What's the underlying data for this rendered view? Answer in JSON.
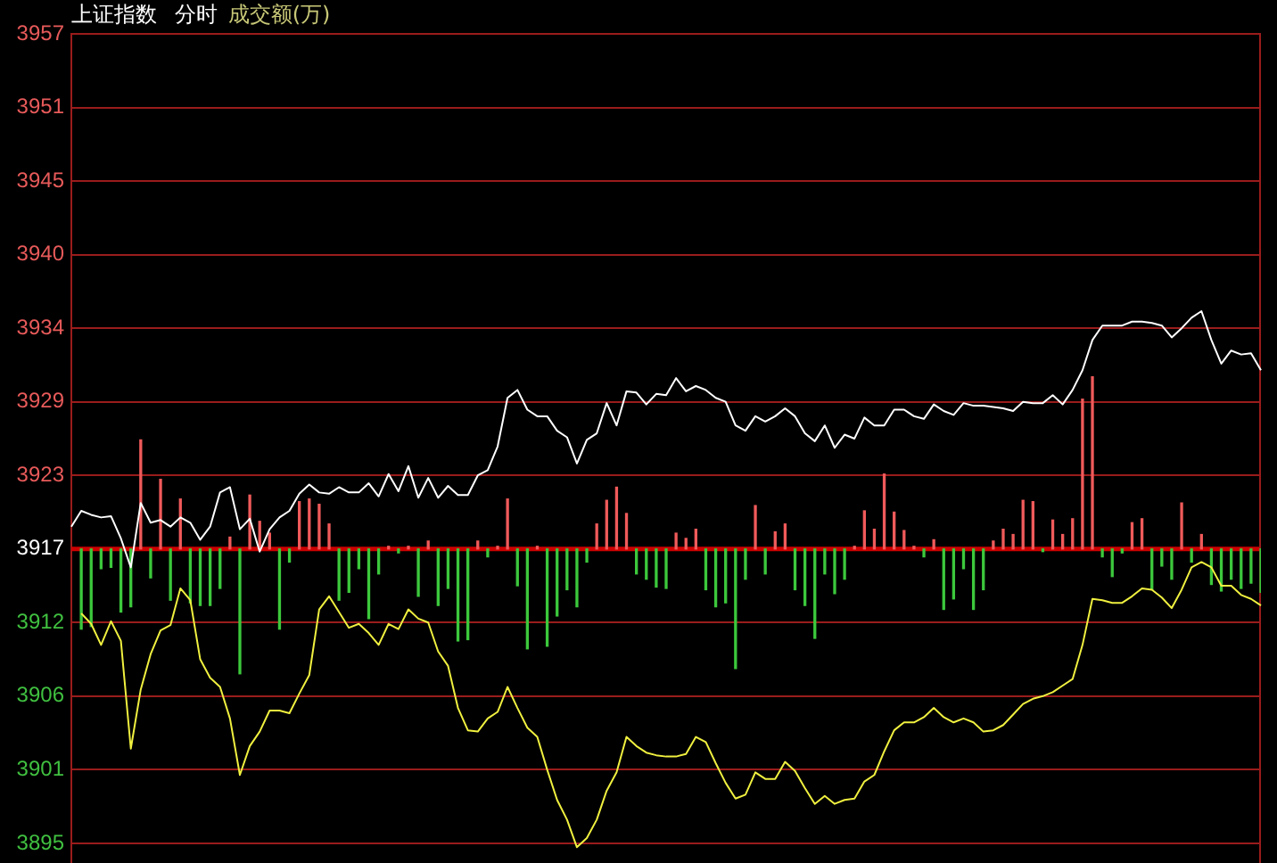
{
  "chart_data": {
    "type": "line",
    "title": "上证指数 分时",
    "subtitle": "成交额(万)",
    "categories": [
      null,
      null,
      null,
      null,
      null,
      null,
      null,
      null,
      null,
      null,
      null,
      null,
      null,
      null,
      null,
      null,
      null,
      null,
      null,
      null,
      null,
      null,
      null,
      null,
      null,
      null,
      null,
      null,
      null,
      null,
      null,
      null,
      null,
      null,
      null,
      null,
      null,
      null,
      null,
      null,
      null,
      null,
      null,
      null,
      null,
      null,
      null,
      null,
      null,
      null,
      null,
      null,
      null,
      null,
      null,
      null,
      null,
      null,
      null,
      null,
      null,
      null,
      null,
      null,
      null,
      null,
      null,
      null,
      null,
      null,
      null,
      null,
      null,
      null,
      null,
      null,
      null,
      null,
      null,
      null,
      null,
      null,
      null,
      null,
      null,
      null,
      null,
      null,
      null,
      null,
      null,
      null,
      null,
      null,
      null,
      null,
      null,
      null,
      null,
      null,
      null,
      null,
      null,
      null,
      null,
      null,
      null,
      null,
      null,
      null,
      null,
      null,
      null,
      null,
      null,
      null,
      null,
      null,
      null,
      null,
      null
    ],
    "ylim": [
      3893.5,
      3956.6
    ],
    "yticks": [
      3895,
      {
        "value": 3900.6,
        "label": "3901"
      },
      {
        "value": 3906.2,
        "label": "3906"
      },
      {
        "value": 3911.8,
        "label": "3912"
      },
      {
        "value": 3917.4,
        "label": "3917"
      },
      3923,
      {
        "value": 3928.6,
        "label": "3929"
      },
      {
        "value": 3934.2,
        "label": "3934"
      },
      {
        "value": 3939.8,
        "label": "3940"
      },
      {
        "value": 3945.4,
        "label": "3945"
      },
      3951,
      {
        "value": 3956.6,
        "label": "3957"
      }
    ],
    "tick_labels": "y",
    "grid": "y",
    "ref_lines": [
      {
        "axis": "y",
        "value": 3917.4,
        "color": "#cc0000"
      }
    ],
    "series": [
      {
        "type": "bar",
        "values": [
          null,
          -6.1,
          -5.9,
          -1.5,
          -1.4,
          -4.8,
          -4.4,
          8.3,
          -2.2,
          5.3,
          -3.9,
          3.8,
          -4.1,
          -4.3,
          -4.3,
          -3.0,
          0.9,
          -9.5,
          4.1,
          2.1,
          1.2,
          -6.1,
          -1.0,
          3.6,
          3.8,
          3.4,
          1.9,
          -3.9,
          -3.3,
          -1.5,
          -5.3,
          -1.9,
          0.2,
          -0.3,
          0.2,
          -3.6,
          0.6,
          -4.3,
          -3.0,
          -7.0,
          -6.9,
          0.6,
          -0.6,
          0.2,
          3.8,
          -2.8,
          -7.6,
          0.2,
          -7.4,
          -5.1,
          -3.1,
          -4.4,
          -1.0,
          1.9,
          3.7,
          4.7,
          2.7,
          -1.9,
          -2.3,
          -2.9,
          -3.0,
          1.2,
          0.8,
          1.5,
          -3.1,
          -4.4,
          -4.1,
          -9.1,
          -2.3,
          3.3,
          -1.9,
          1.3,
          1.9,
          -3.1,
          -4.3,
          -6.8,
          -1.9,
          -3.4,
          -2.3,
          0.2,
          2.9,
          1.5,
          5.7,
          2.8,
          1.4,
          0.2,
          -0.6,
          0.7,
          -4.6,
          -3.8,
          -1.5,
          -4.6,
          -3.1,
          0.6,
          1.5,
          1.1,
          3.7,
          3.6,
          -0.2,
          2.2,
          1.1,
          2.3,
          11.4,
          13.1,
          -0.6,
          -2.1,
          -0.3,
          2.0,
          2.3,
          -3.1,
          -1.3,
          -2.3,
          3.5,
          -1.0,
          1.1,
          -2.7,
          -3.2,
          -2.3,
          -3.0,
          -2.6,
          -3.3
        ],
        "base": [
          null,
          3917.4,
          3917.4,
          3917.4,
          3917.4,
          3917.4,
          3917.4,
          3917.4,
          3917.4,
          3917.4,
          3917.4,
          3917.4,
          3917.4,
          3917.4,
          3917.4,
          3917.4,
          3917.4,
          3917.4,
          3917.4,
          3917.4,
          3917.4,
          3917.4,
          3917.4,
          3917.4,
          3917.4,
          3917.4,
          3917.4,
          3917.4,
          3917.4,
          3917.4,
          3917.4,
          3917.4,
          3917.4,
          3917.4,
          3917.4,
          3917.4,
          3917.4,
          3917.4,
          3917.4,
          3917.4,
          3917.4,
          3917.4,
          3917.4,
          3917.4,
          3917.4,
          3917.4,
          3917.4,
          3917.4,
          3917.4,
          3917.4,
          3917.4,
          3917.4,
          3917.4,
          3917.4,
          3917.4,
          3917.4,
          3917.4,
          3917.4,
          3917.4,
          3917.4,
          3917.4,
          3917.4,
          3917.4,
          3917.4,
          3917.4,
          3917.4,
          3917.4,
          3917.4,
          3917.4,
          3917.4,
          3917.4,
          3917.4,
          3917.4,
          3917.4,
          3917.4,
          3917.4,
          3917.4,
          3917.4,
          3917.4,
          3917.4,
          3917.4,
          3917.4,
          3917.4,
          3917.4,
          3917.4,
          3917.4,
          3917.4,
          3917.4,
          3917.4,
          3917.4,
          3917.4,
          3917.4,
          3917.4,
          3917.4,
          3917.4,
          3917.4,
          3917.4,
          3917.4,
          3917.4,
          3917.4,
          3917.4,
          3917.4,
          3917.4,
          3917.4,
          3917.4,
          3917.4,
          3917.4,
          3917.4,
          3917.4,
          3917.4,
          3917.4,
          3917.4,
          3917.4,
          3917.4,
          3917.4,
          3917.4,
          3917.4,
          3917.4,
          3917.4,
          3917.4,
          3917.4
        ],
        "colors": [
          null,
          "#3cc83c",
          "#3cc83c",
          "#3cc83c",
          "#3cc83c",
          "#3cc83c",
          "#3cc83c",
          "#f05a5a",
          "#3cc83c",
          "#f05a5a",
          "#3cc83c",
          "#f05a5a",
          "#3cc83c",
          "#3cc83c",
          "#3cc83c",
          "#3cc83c",
          "#f05a5a",
          "#3cc83c",
          "#f05a5a",
          "#f05a5a",
          "#f05a5a",
          "#3cc83c",
          "#3cc83c",
          "#f05a5a",
          "#f05a5a",
          "#f05a5a",
          "#f05a5a",
          "#3cc83c",
          "#3cc83c",
          "#3cc83c",
          "#3cc83c",
          "#3cc83c",
          "#f05a5a",
          "#3cc83c",
          "#f05a5a",
          "#3cc83c",
          "#f05a5a",
          "#3cc83c",
          "#3cc83c",
          "#3cc83c",
          "#3cc83c",
          "#f05a5a",
          "#3cc83c",
          "#f05a5a",
          "#f05a5a",
          "#3cc83c",
          "#3cc83c",
          "#f05a5a",
          "#3cc83c",
          "#3cc83c",
          "#3cc83c",
          "#3cc83c",
          "#3cc83c",
          "#f05a5a",
          "#f05a5a",
          "#f05a5a",
          "#f05a5a",
          "#3cc83c",
          "#3cc83c",
          "#3cc83c",
          "#3cc83c",
          "#f05a5a",
          "#f05a5a",
          "#f05a5a",
          "#3cc83c",
          "#3cc83c",
          "#3cc83c",
          "#3cc83c",
          "#3cc83c",
          "#f05a5a",
          "#3cc83c",
          "#f05a5a",
          "#f05a5a",
          "#3cc83c",
          "#3cc83c",
          "#3cc83c",
          "#3cc83c",
          "#3cc83c",
          "#3cc83c",
          "#f05a5a",
          "#f05a5a",
          "#f05a5a",
          "#f05a5a",
          "#f05a5a",
          "#f05a5a",
          "#f05a5a",
          "#3cc83c",
          "#f05a5a",
          "#3cc83c",
          "#3cc83c",
          "#3cc83c",
          "#3cc83c",
          "#3cc83c",
          "#f05a5a",
          "#f05a5a",
          "#f05a5a",
          "#f05a5a",
          "#f05a5a",
          "#3cc83c",
          "#f05a5a",
          "#f05a5a",
          "#f05a5a",
          "#f05a5a",
          "#f05a5a",
          "#3cc83c",
          "#3cc83c",
          "#3cc83c",
          "#f05a5a",
          "#f05a5a",
          "#3cc83c",
          "#3cc83c",
          "#3cc83c",
          "#f05a5a",
          "#3cc83c",
          "#f05a5a",
          "#3cc83c",
          "#3cc83c",
          "#3cc83c",
          "#3cc83c",
          "#3cc83c",
          "#3cc83c"
        ]
      },
      {
        "color": "#ffffff",
        "values": [
          3919.1,
          3920.3,
          3920.0,
          3919.8,
          3919.9,
          3918.2,
          3916.0,
          3920.9,
          3919.4,
          3919.6,
          3919.1,
          3919.8,
          3919.4,
          3918.1,
          3919.1,
          3921.7,
          3922.1,
          3918.9,
          3919.7,
          3917.2,
          3918.9,
          3919.8,
          3920.3,
          3921.6,
          3922.3,
          3921.7,
          3921.6,
          3922.1,
          3921.7,
          3921.7,
          3922.4,
          3921.4,
          3923.1,
          3921.8,
          3923.7,
          3921.3,
          3922.8,
          3921.3,
          3922.2,
          3921.5,
          3921.5,
          3923.0,
          3923.4,
          3925.2,
          3928.9,
          3929.5,
          3928.0,
          3927.5,
          3927.5,
          3926.4,
          3925.9,
          3923.9,
          3925.7,
          3926.2,
          3928.5,
          3926.8,
          3929.4,
          3929.3,
          3928.4,
          3929.2,
          3929.1,
          3930.4,
          3929.4,
          3929.8,
          3929.5,
          3928.9,
          3928.6,
          3926.8,
          3926.4,
          3927.5,
          3927.1,
          3927.5,
          3928.1,
          3927.5,
          3926.2,
          3925.6,
          3926.8,
          3925.1,
          3926.1,
          3925.8,
          3927.4,
          3926.8,
          3926.8,
          3928.0,
          3928.0,
          3927.5,
          3927.3,
          3928.4,
          3927.9,
          3927.6,
          3928.5,
          3928.3,
          3928.3,
          3928.2,
          3928.1,
          3927.9,
          3928.6,
          3928.5,
          3928.5,
          3929.1,
          3928.4,
          3929.5,
          3931.0,
          3933.3,
          3934.4,
          3934.4,
          3934.4,
          3934.7,
          3934.7,
          3934.6,
          3934.4,
          3933.5,
          3934.2,
          3935.0,
          3935.5,
          3933.3,
          3931.5,
          3932.5,
          3932.2,
          3932.3,
          3931.0
        ]
      },
      {
        "color": "#f0f040",
        "values": [
          null,
          3912.5,
          3911.7,
          3910.1,
          3911.9,
          3910.4,
          3902.2,
          3906.7,
          3909.4,
          3911.2,
          3911.6,
          3914.4,
          3913.5,
          3909.0,
          3907.6,
          3906.9,
          3904.5,
          3900.2,
          3902.4,
          3903.5,
          3905.1,
          3905.1,
          3904.9,
          3906.4,
          3907.8,
          3912.8,
          3913.8,
          3912.6,
          3911.4,
          3911.7,
          3911.0,
          3910.1,
          3911.7,
          3911.3,
          3912.8,
          3912.1,
          3911.8,
          3909.6,
          3908.5,
          3905.3,
          3903.6,
          3903.5,
          3904.5,
          3905.0,
          3906.9,
          3905.3,
          3903.8,
          3903.1,
          3900.6,
          3898.3,
          3896.8,
          3894.7,
          3895.4,
          3896.8,
          3899.0,
          3900.4,
          3903.1,
          3902.4,
          3901.9,
          3901.7,
          3901.6,
          3901.6,
          3901.8,
          3903.1,
          3902.7,
          3901.1,
          3899.6,
          3898.4,
          3898.7,
          3900.4,
          3899.9,
          3899.9,
          3901.2,
          3900.5,
          3899.2,
          3898.0,
          3898.6,
          3898.0,
          3898.3,
          3898.4,
          3899.7,
          3900.2,
          3902.0,
          3903.6,
          3904.2,
          3904.2,
          3904.6,
          3905.3,
          3904.6,
          3904.2,
          3904.5,
          3904.2,
          3903.5,
          3903.6,
          3904.0,
          3904.8,
          3905.6,
          3906.0,
          3906.2,
          3906.5,
          3907.0,
          3907.5,
          3910.1,
          3913.6,
          3913.5,
          3913.3,
          3913.3,
          3913.8,
          3914.4,
          3914.3,
          3913.7,
          3912.9,
          3914.3,
          3916.0,
          3916.4,
          3916.0,
          3914.6,
          3914.6,
          3913.9,
          3913.6,
          3913.1
        ]
      }
    ]
  }
}
